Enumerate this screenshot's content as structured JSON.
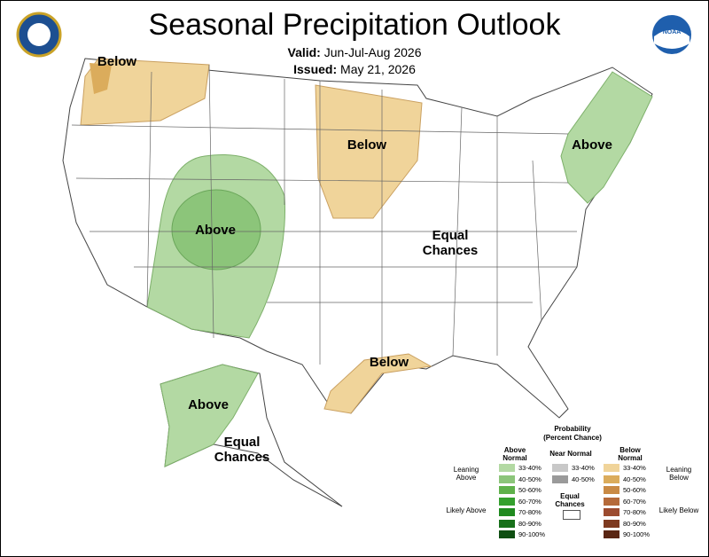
{
  "header": {
    "title": "Seasonal Precipitation Outlook",
    "valid_label": "Valid:",
    "valid_value": "Jun-Jul-Aug 2026",
    "issued_label": "Issued:",
    "issued_value": "May 21, 2026",
    "logo": "NOAA"
  },
  "map_labels": [
    "Below",
    "Below",
    "Above",
    "Above",
    "Equal Chances",
    "Below",
    "Above",
    "Equal Chances"
  ],
  "legend": {
    "title": "Probability",
    "subtitle": "(Percent Chance)",
    "above": {
      "header": "Above Normal",
      "ranges": [
        "33-40%",
        "40-50%",
        "50-60%",
        "60-70%",
        "70-80%",
        "80-90%",
        "90-100%"
      ],
      "colors": [
        "#b3d9a3",
        "#8cc57a",
        "#5fb14b",
        "#34a02e",
        "#1f8a1f",
        "#17701a",
        "#0f4f12"
      ]
    },
    "near": {
      "header": "Near Normal",
      "ranges": [
        "33-40%",
        "40-50%"
      ],
      "colors": [
        "#c8c8c8",
        "#9a9a9a"
      ]
    },
    "below": {
      "header": "Below Normal",
      "ranges": [
        "33-40%",
        "40-50%",
        "50-60%",
        "60-70%",
        "70-80%",
        "80-90%",
        "90-100%"
      ],
      "colors": [
        "#f0d49a",
        "#dbac5c",
        "#c98a45",
        "#b56a3a",
        "#9c4b2f",
        "#7e3a20",
        "#5a2613"
      ]
    },
    "equal": "Equal Chances",
    "leaning_above": "Leaning Above",
    "likely_above": "Likely Above",
    "leaning_below": "Leaning Below",
    "likely_below": "Likely Below"
  }
}
